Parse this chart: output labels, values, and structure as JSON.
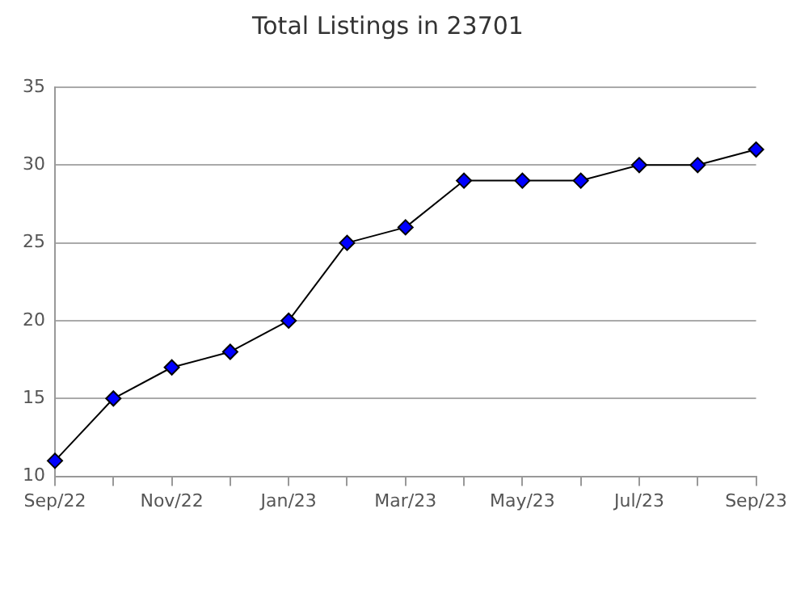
{
  "chart_data": {
    "type": "line",
    "title": "Total Listings in 23701",
    "categories": [
      "Sep/22",
      null,
      "Nov/22",
      null,
      "Jan/23",
      null,
      "Mar/23",
      null,
      "May/23",
      null,
      "Jul/23",
      null,
      "Sep/23"
    ],
    "series": [
      {
        "color": "#0000ff",
        "values": [
          11,
          15,
          17,
          18,
          20,
          25,
          26,
          29,
          29,
          29,
          30,
          30,
          31
        ]
      }
    ],
    "ylim": [
      10,
      35
    ],
    "yticks": [
      10,
      15,
      20,
      25,
      30,
      35
    ],
    "grid": "y",
    "legend": false,
    "marker": "diamond",
    "line_style": "solid"
  }
}
